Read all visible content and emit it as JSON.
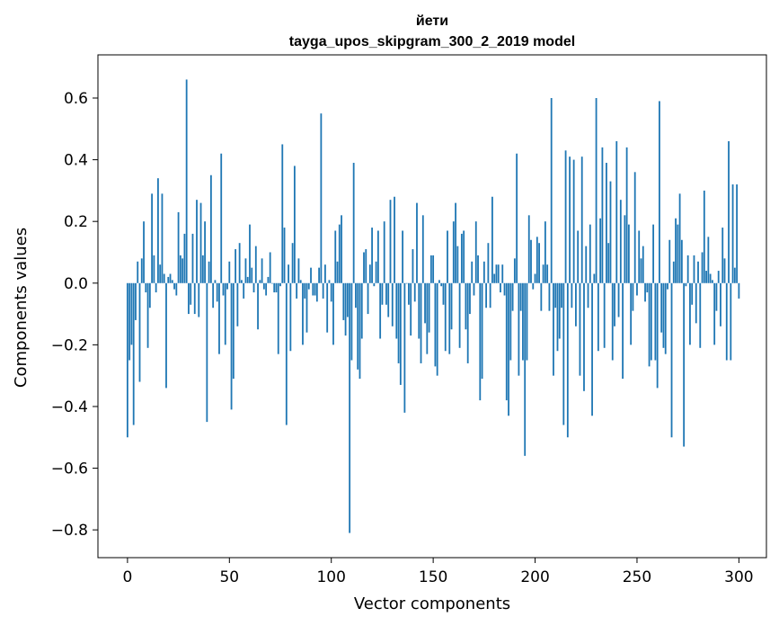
{
  "chart_data": {
    "type": "bar",
    "title": "йети",
    "subtitle": "tayga_upos_skipgram_300_2_2019 model",
    "xlabel": "Vector components",
    "ylabel": "Components values",
    "xlim": [
      -14.5,
      313.5
    ],
    "ylim": [
      -0.89,
      0.74
    ],
    "xticks": [
      {
        "value": 0,
        "label": "0"
      },
      {
        "value": 50,
        "label": "50"
      },
      {
        "value": 100,
        "label": "100"
      },
      {
        "value": 150,
        "label": "150"
      },
      {
        "value": 200,
        "label": "200"
      },
      {
        "value": 250,
        "label": "250"
      },
      {
        "value": 300,
        "label": "300"
      }
    ],
    "yticks": [
      {
        "value": -0.8,
        "label": "−0.8"
      },
      {
        "value": -0.6,
        "label": "−0.6"
      },
      {
        "value": -0.4,
        "label": "−0.4"
      },
      {
        "value": -0.2,
        "label": "−0.2"
      },
      {
        "value": 0.0,
        "label": "0.0"
      },
      {
        "value": 0.2,
        "label": "0.2"
      },
      {
        "value": 0.4,
        "label": "0.4"
      },
      {
        "value": 0.6,
        "label": "0.6"
      }
    ],
    "bar_color": "#1f77b4",
    "series": [
      {
        "name": "йети",
        "values": [
          -0.5,
          -0.25,
          -0.2,
          -0.46,
          -0.12,
          0.07,
          -0.32,
          0.08,
          0.2,
          -0.03,
          -0.21,
          -0.08,
          0.29,
          0.09,
          -0.03,
          0.34,
          0.06,
          0.29,
          0.03,
          -0.34,
          0.02,
          0.03,
          0.01,
          -0.02,
          -0.04,
          0.23,
          0.09,
          0.08,
          0.16,
          0.66,
          -0.1,
          -0.07,
          0.16,
          -0.1,
          0.27,
          -0.11,
          0.26,
          0.09,
          0.2,
          -0.45,
          0.07,
          0.35,
          -0.08,
          0.01,
          -0.06,
          -0.23,
          0.42,
          -0.04,
          -0.2,
          -0.02,
          0.07,
          -0.41,
          -0.31,
          0.11,
          -0.14,
          0.13,
          0.01,
          -0.05,
          0.08,
          0.02,
          0.19,
          0.05,
          -0.03,
          0.12,
          -0.15,
          0.01,
          0.08,
          -0.02,
          -0.04,
          0.02,
          0.1,
          0.0,
          -0.03,
          -0.03,
          -0.23,
          -0.01,
          0.45,
          0.18,
          -0.46,
          0.06,
          -0.22,
          0.13,
          0.38,
          -0.05,
          0.08,
          0.01,
          -0.2,
          -0.05,
          -0.16,
          -0.02,
          0.05,
          -0.04,
          -0.04,
          -0.06,
          0.05,
          0.55,
          -0.05,
          0.06,
          -0.16,
          0.01,
          -0.06,
          -0.2,
          0.17,
          0.07,
          0.19,
          0.22,
          -0.12,
          -0.17,
          -0.11,
          -0.81,
          -0.25,
          0.39,
          -0.08,
          -0.28,
          -0.31,
          -0.18,
          0.1,
          0.11,
          -0.1,
          0.06,
          0.18,
          -0.01,
          0.07,
          0.17,
          -0.18,
          -0.07,
          0.2,
          -0.07,
          -0.11,
          0.27,
          -0.14,
          0.28,
          -0.18,
          -0.26,
          -0.33,
          0.17,
          -0.42,
          0.0,
          -0.07,
          -0.17,
          0.11,
          -0.06,
          0.26,
          -0.18,
          -0.26,
          0.22,
          -0.13,
          -0.23,
          -0.16,
          0.09,
          0.09,
          -0.27,
          -0.3,
          0.01,
          -0.01,
          -0.07,
          -0.22,
          0.17,
          -0.23,
          -0.15,
          0.2,
          0.26,
          0.12,
          -0.21,
          0.16,
          0.17,
          -0.15,
          -0.26,
          -0.1,
          0.07,
          -0.04,
          0.2,
          0.09,
          -0.38,
          -0.31,
          0.07,
          -0.08,
          0.13,
          -0.08,
          0.28,
          0.03,
          0.06,
          0.06,
          -0.03,
          0.06,
          -0.04,
          -0.38,
          -0.43,
          -0.25,
          -0.09,
          0.08,
          0.42,
          -0.3,
          -0.09,
          -0.25,
          -0.56,
          -0.25,
          0.22,
          0.14,
          -0.02,
          0.03,
          0.15,
          0.13,
          -0.09,
          0.06,
          0.2,
          0.06,
          -0.09,
          0.6,
          -0.3,
          -0.08,
          -0.22,
          -0.18,
          -0.08,
          -0.46,
          0.43,
          -0.5,
          0.41,
          -0.08,
          0.4,
          -0.14,
          0.17,
          -0.3,
          0.41,
          -0.35,
          0.12,
          -0.08,
          0.19,
          -0.43,
          0.03,
          0.6,
          -0.22,
          0.21,
          0.44,
          -0.21,
          0.39,
          0.13,
          0.33,
          -0.25,
          -0.14,
          0.46,
          -0.11,
          0.27,
          -0.31,
          0.22,
          0.44,
          0.19,
          -0.2,
          -0.09,
          0.36,
          -0.04,
          0.17,
          0.08,
          0.12,
          -0.06,
          -0.03,
          -0.27,
          -0.25,
          0.19,
          -0.25,
          -0.34,
          0.59,
          -0.16,
          -0.21,
          -0.23,
          -0.02,
          0.14,
          -0.5,
          0.07,
          0.21,
          0.19,
          0.29,
          0.14,
          -0.53,
          -0.01,
          0.09,
          -0.2,
          -0.07,
          0.09,
          -0.13,
          0.07,
          -0.21,
          0.1,
          0.3,
          0.04,
          0.15,
          0.03,
          0.01,
          -0.2,
          -0.09,
          0.04,
          -0.14,
          0.18,
          0.08,
          -0.25,
          0.46,
          -0.25,
          0.32,
          0.05,
          0.32,
          -0.05
        ]
      }
    ]
  }
}
